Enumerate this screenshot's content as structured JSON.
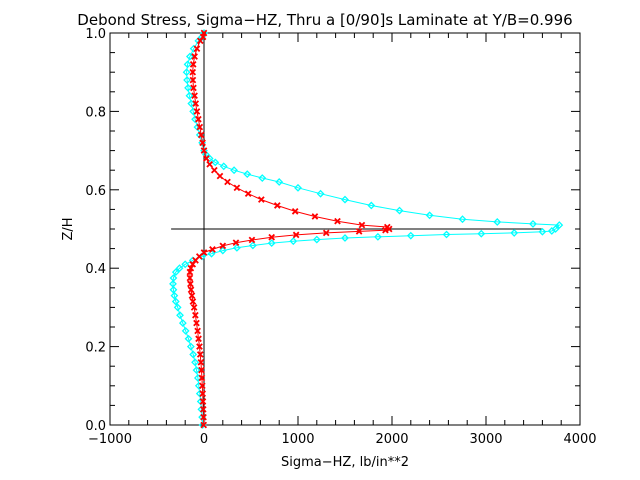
{
  "chart_data": {
    "type": "line",
    "title": "Debond Stress, Sigma−HZ, Thru a [0/90]s Laminate at Y/B=0.996",
    "xlabel": "Sigma−HZ,  lb/in**2",
    "ylabel": "Z/H",
    "xlim": [
      -1000,
      4000
    ],
    "ylim": [
      0.0,
      1.0
    ],
    "x_ticks": [
      -1000,
      0,
      1000,
      2000,
      3000,
      4000
    ],
    "x_tick_labels": [
      "−1000",
      "0",
      "1000",
      "2000",
      "3000",
      "4000"
    ],
    "y_ticks": [
      0.0,
      0.2,
      0.4,
      0.6,
      0.8,
      1.0
    ],
    "y_tick_labels": [
      "0.0",
      "0.2",
      "0.4",
      "0.6",
      "0.8",
      "1.0"
    ],
    "grid": false,
    "reference_lines": {
      "vertical_at_x": 0,
      "horizontal_at_y": 0.5,
      "horizontal_x_range": [
        -350,
        3600
      ]
    },
    "series": [
      {
        "color": "#00ffff",
        "marker": "diamond",
        "points": [
          [
            0,
            1.0
          ],
          [
            -20,
            0.99
          ],
          [
            -60,
            0.98
          ],
          [
            -110,
            0.96
          ],
          [
            -150,
            0.94
          ],
          [
            -175,
            0.92
          ],
          [
            -185,
            0.9
          ],
          [
            -180,
            0.88
          ],
          [
            -170,
            0.86
          ],
          [
            -155,
            0.84
          ],
          [
            -135,
            0.82
          ],
          [
            -115,
            0.8
          ],
          [
            -95,
            0.78
          ],
          [
            -70,
            0.76
          ],
          [
            -45,
            0.74
          ],
          [
            -20,
            0.72
          ],
          [
            0,
            0.7
          ],
          [
            20,
            0.69
          ],
          [
            60,
            0.68
          ],
          [
            120,
            0.67
          ],
          [
            210,
            0.66
          ],
          [
            320,
            0.65
          ],
          [
            460,
            0.64
          ],
          [
            620,
            0.63
          ],
          [
            800,
            0.62
          ],
          [
            1000,
            0.605
          ],
          [
            1240,
            0.59
          ],
          [
            1500,
            0.575
          ],
          [
            1780,
            0.56
          ],
          [
            2080,
            0.547
          ],
          [
            2400,
            0.535
          ],
          [
            2750,
            0.525
          ],
          [
            3120,
            0.518
          ],
          [
            3500,
            0.513
          ],
          [
            3780,
            0.51
          ],
          [
            3740,
            0.5
          ],
          [
            3700,
            0.495
          ],
          [
            3600,
            0.493
          ],
          [
            3300,
            0.49
          ],
          [
            2950,
            0.488
          ],
          [
            2580,
            0.486
          ],
          [
            2200,
            0.483
          ],
          [
            1850,
            0.48
          ],
          [
            1500,
            0.477
          ],
          [
            1200,
            0.473
          ],
          [
            950,
            0.469
          ],
          [
            720,
            0.464
          ],
          [
            520,
            0.458
          ],
          [
            350,
            0.452
          ],
          [
            200,
            0.445
          ],
          [
            80,
            0.437
          ],
          [
            -20,
            0.43
          ],
          [
            -120,
            0.42
          ],
          [
            -200,
            0.41
          ],
          [
            -260,
            0.4
          ],
          [
            -300,
            0.39
          ],
          [
            -325,
            0.375
          ],
          [
            -330,
            0.36
          ],
          [
            -325,
            0.345
          ],
          [
            -315,
            0.33
          ],
          [
            -300,
            0.315
          ],
          [
            -280,
            0.3
          ],
          [
            -255,
            0.28
          ],
          [
            -225,
            0.26
          ],
          [
            -195,
            0.24
          ],
          [
            -165,
            0.22
          ],
          [
            -140,
            0.2
          ],
          [
            -115,
            0.18
          ],
          [
            -95,
            0.16
          ],
          [
            -80,
            0.14
          ],
          [
            -65,
            0.12
          ],
          [
            -55,
            0.1
          ],
          [
            -45,
            0.08
          ],
          [
            -35,
            0.06
          ],
          [
            -28,
            0.04
          ],
          [
            -20,
            0.02
          ],
          [
            -15,
            0.0
          ]
        ]
      },
      {
        "color": "#ff0000",
        "marker": "x",
        "points": [
          [
            0,
            1.0
          ],
          [
            -10,
            0.99
          ],
          [
            -40,
            0.98
          ],
          [
            -75,
            0.96
          ],
          [
            -100,
            0.94
          ],
          [
            -115,
            0.92
          ],
          [
            -120,
            0.9
          ],
          [
            -118,
            0.88
          ],
          [
            -112,
            0.86
          ],
          [
            -100,
            0.84
          ],
          [
            -88,
            0.82
          ],
          [
            -75,
            0.8
          ],
          [
            -60,
            0.78
          ],
          [
            -45,
            0.76
          ],
          [
            -30,
            0.74
          ],
          [
            -15,
            0.72
          ],
          [
            0,
            0.7
          ],
          [
            25,
            0.68
          ],
          [
            60,
            0.665
          ],
          [
            110,
            0.65
          ],
          [
            170,
            0.635
          ],
          [
            250,
            0.62
          ],
          [
            350,
            0.605
          ],
          [
            470,
            0.59
          ],
          [
            610,
            0.575
          ],
          [
            780,
            0.56
          ],
          [
            970,
            0.545
          ],
          [
            1180,
            0.532
          ],
          [
            1420,
            0.52
          ],
          [
            1680,
            0.51
          ],
          [
            1950,
            0.505
          ],
          [
            1970,
            0.5
          ],
          [
            1930,
            0.497
          ],
          [
            1650,
            0.494
          ],
          [
            1300,
            0.49
          ],
          [
            980,
            0.485
          ],
          [
            720,
            0.479
          ],
          [
            510,
            0.472
          ],
          [
            340,
            0.465
          ],
          [
            200,
            0.457
          ],
          [
            90,
            0.448
          ],
          [
            0,
            0.44
          ],
          [
            -50,
            0.43
          ],
          [
            -90,
            0.42
          ],
          [
            -120,
            0.41
          ],
          [
            -140,
            0.4
          ],
          [
            -150,
            0.39
          ],
          [
            -150,
            0.375
          ],
          [
            -145,
            0.36
          ],
          [
            -138,
            0.345
          ],
          [
            -128,
            0.33
          ],
          [
            -118,
            0.315
          ],
          [
            -105,
            0.3
          ],
          [
            -92,
            0.28
          ],
          [
            -80,
            0.26
          ],
          [
            -68,
            0.24
          ],
          [
            -58,
            0.22
          ],
          [
            -48,
            0.2
          ],
          [
            -40,
            0.18
          ],
          [
            -33,
            0.16
          ],
          [
            -27,
            0.14
          ],
          [
            -22,
            0.12
          ],
          [
            -18,
            0.1
          ],
          [
            -14,
            0.08
          ],
          [
            -11,
            0.06
          ],
          [
            -8,
            0.04
          ],
          [
            -5,
            0.02
          ],
          [
            -3,
            0.0
          ]
        ]
      }
    ]
  }
}
